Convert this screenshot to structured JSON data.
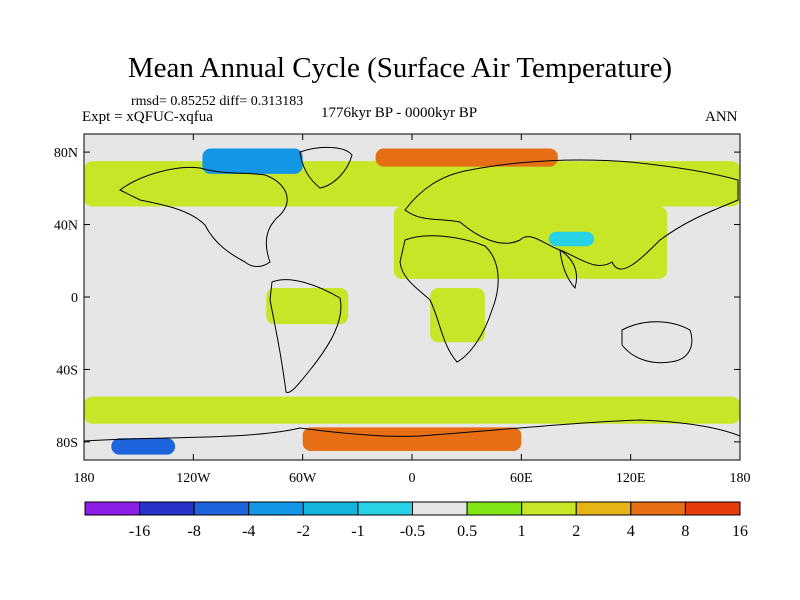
{
  "chart_data": {
    "type": "heatmap",
    "title": "Mean Annual Cycle (Surface Air Temperature)",
    "stats_line": "rmsd= 0.85252 diff= 0.313183",
    "experiment": "Expt = xQFUC-xqfua",
    "period": "1776kyr BP - 0000kyr BP",
    "season": "ANN",
    "lat_ticks": [
      "80N",
      "40N",
      "0",
      "40S",
      "80S"
    ],
    "lat_values": [
      80,
      40,
      0,
      -40,
      -80
    ],
    "lon_ticks": [
      "180",
      "120W",
      "60W",
      "0",
      "60E",
      "120E",
      "180"
    ],
    "lon_values": [
      -180,
      -120,
      -60,
      0,
      60,
      120,
      180
    ],
    "xlim": [
      -180,
      180
    ],
    "ylim": [
      -90,
      90
    ],
    "colorbar": {
      "labels": [
        "-16",
        "-8",
        "-4",
        "-2",
        "-1",
        "-0.5",
        "0.5",
        "1",
        "2",
        "4",
        "8",
        "16"
      ],
      "colors": [
        "#8c1ee6",
        "#2832c8",
        "#1e64dc",
        "#1496e6",
        "#14b4dc",
        "#28d2e6",
        "#e6e6e6",
        "#82e614",
        "#c8e628",
        "#e6b414",
        "#e66e14",
        "#e63c0a"
      ]
    },
    "regions": [
      {
        "value": 1,
        "lon": [
          -180,
          180
        ],
        "lat": [
          50,
          75
        ]
      },
      {
        "value": 4,
        "lon": [
          -20,
          80
        ],
        "lat": [
          72,
          82
        ]
      },
      {
        "value": -4,
        "lon": [
          -115,
          -60
        ],
        "lat": [
          68,
          82
        ]
      },
      {
        "value": 1,
        "lon": [
          -10,
          140
        ],
        "lat": [
          10,
          50
        ]
      },
      {
        "value": -1,
        "lon": [
          75,
          100
        ],
        "lat": [
          28,
          36
        ]
      },
      {
        "value": 1,
        "lon": [
          -80,
          -35
        ],
        "lat": [
          -15,
          5
        ]
      },
      {
        "value": 1,
        "lon": [
          10,
          40
        ],
        "lat": [
          -25,
          5
        ]
      },
      {
        "value": 1,
        "lon": [
          -180,
          180
        ],
        "lat": [
          -70,
          -55
        ]
      },
      {
        "value": -8,
        "lon": [
          -165,
          -130
        ],
        "lat": [
          -87,
          -78
        ]
      },
      {
        "value": 4,
        "lon": [
          -60,
          60
        ],
        "lat": [
          -85,
          -72
        ]
      }
    ]
  }
}
